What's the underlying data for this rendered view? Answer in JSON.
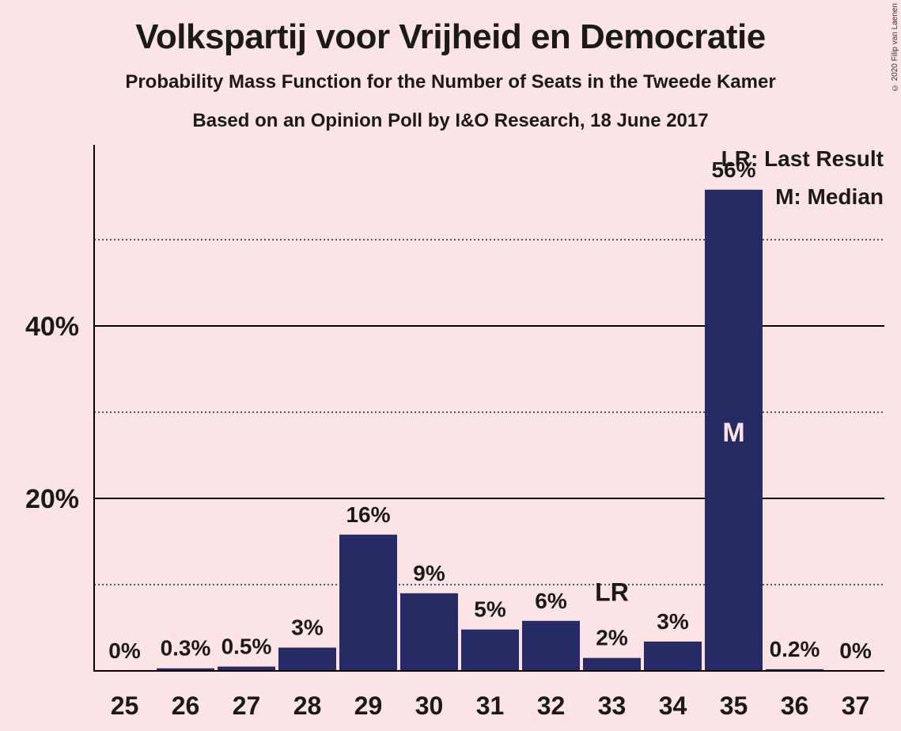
{
  "title": "Volkspartij voor Vrijheid en Democratie",
  "subtitle": "Probability Mass Function for the Number of Seats in the Tweede Kamer",
  "subtitle2": "Based on an Opinion Poll by I&O Research, 18 June 2017",
  "copyright": "© 2020 Filip van Laenen",
  "colors": {
    "background": "#fce4e6",
    "bar": "#262b66",
    "text": "#1a1a1a"
  },
  "chart_data": {
    "type": "bar",
    "categories": [
      "25",
      "26",
      "27",
      "28",
      "29",
      "30",
      "31",
      "32",
      "33",
      "34",
      "35",
      "36",
      "37"
    ],
    "values": [
      0,
      0.3,
      0.5,
      3,
      16,
      9,
      5,
      6,
      2,
      3,
      56,
      0.2,
      0
    ],
    "bar_heights_pct": [
      0,
      0.3,
      0.5,
      2.7,
      15.8,
      9.0,
      4.8,
      5.8,
      1.5,
      3.4,
      55.8,
      0.2,
      0
    ],
    "labels": [
      "0%",
      "0.3%",
      "0.5%",
      "3%",
      "16%",
      "9%",
      "5%",
      "6%",
      "2%",
      "3%",
      "56%",
      "0.2%",
      "0%"
    ],
    "ylim": [
      0,
      60
    ],
    "yticks": [
      {
        "value": 20,
        "label": "20%"
      },
      {
        "value": 40,
        "label": "40%"
      }
    ],
    "minor_gridlines": [
      10,
      30,
      50
    ],
    "last_result": {
      "category": "33",
      "label": "LR"
    },
    "median": {
      "category": "35",
      "label": "M"
    },
    "legend": [
      "LR: Last Result",
      "M: Median"
    ],
    "legend_position": "top-right"
  }
}
